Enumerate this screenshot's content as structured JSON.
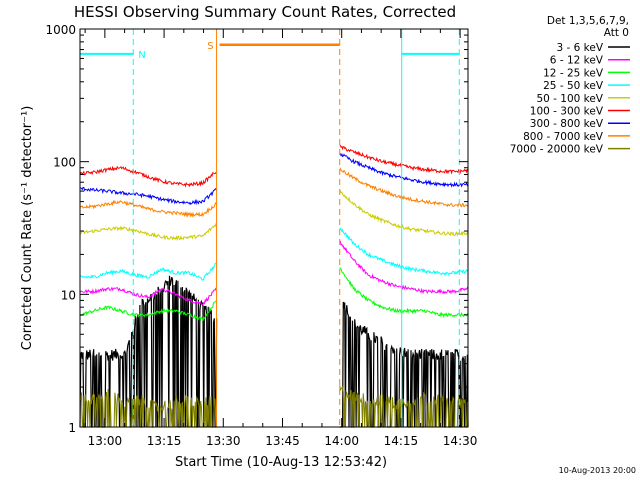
{
  "chart_data": {
    "type": "line",
    "title": "HESSI Observing Summary Count Rates, Corrected",
    "xlabel": "Start Time (10-Aug-13 12:53:42)",
    "ylabel": "Corrected Count Rate (s⁻¹ detector⁻¹)",
    "yscale": "log",
    "ylim": [
      1,
      1000
    ],
    "xlim_minutes": [
      53.7,
      152
    ],
    "x_ticks": [
      "13:00",
      "13:15",
      "13:30",
      "13:45",
      "14:00",
      "14:15",
      "14:30"
    ],
    "x_tick_minutes": [
      60,
      75,
      90,
      105,
      120,
      135,
      150
    ],
    "y_ticks": [
      "1",
      "10",
      "100",
      "1000"
    ],
    "grid": false,
    "legend_position": "right",
    "legend_header": [
      "Det 1,3,5,6,7,9,",
      "Att 0"
    ],
    "data_gap_minutes": [
      88.3,
      119.5
    ],
    "series": [
      {
        "name": "3 - 6 keV",
        "color": "#000000",
        "pre": [
          3.5,
          3.5,
          3.5,
          3.5,
          8.5,
          10.0,
          13.0,
          10.5,
          8.0,
          6.5
        ],
        "post": [
          10.0,
          6.0,
          5.0,
          4.3,
          3.8,
          3.5,
          3.5,
          3.5,
          3.5,
          3.5
        ]
      },
      {
        "name": "6 - 12 keV",
        "color": "#ff00ff",
        "pre": [
          10.5,
          10.5,
          11.0,
          11.0,
          10.0,
          9.5,
          11.0,
          10.0,
          9.0,
          8.5,
          11.0
        ],
        "post": [
          25.0,
          18.0,
          14.0,
          12.5,
          11.5,
          11.0,
          10.5,
          10.5,
          10.5,
          11.0
        ]
      },
      {
        "name": "12 - 25 keV",
        "color": "#00ff00",
        "pre": [
          7.0,
          7.5,
          8.0,
          7.5,
          7.0,
          7.0,
          7.5,
          7.5,
          7.0,
          6.5,
          9.0
        ],
        "post": [
          16.0,
          11.0,
          9.0,
          8.0,
          7.5,
          7.5,
          7.5,
          7.0,
          7.0,
          7.0
        ]
      },
      {
        "name": "25 - 50 keV",
        "color": "#00ffff",
        "pre": [
          13.5,
          13.5,
          14.5,
          15.0,
          14.0,
          13.5,
          15.5,
          14.5,
          14.5,
          13.0,
          17.0
        ],
        "post": [
          32.0,
          24.0,
          20.0,
          18.0,
          16.5,
          15.5,
          15.0,
          14.5,
          14.5,
          15.0
        ]
      },
      {
        "name": "50 - 100 keV",
        "color": "#cccc00",
        "pre": [
          29.0,
          30.0,
          31.0,
          31.5,
          30.5,
          28.5,
          27.0,
          26.5,
          27.0,
          27.5,
          34.0
        ],
        "post": [
          60.0,
          48.0,
          40.0,
          36.0,
          33.0,
          31.0,
          30.0,
          29.0,
          28.5,
          29.0
        ]
      },
      {
        "name": "100 - 300 keV",
        "color": "#ff0000",
        "pre": [
          81.0,
          83.0,
          87.0,
          90.0,
          84.0,
          77.0,
          71.0,
          68.0,
          67.0,
          69.0,
          85.0
        ],
        "post": [
          130.0,
          118.0,
          108.0,
          100.0,
          95.0,
          90.0,
          87.0,
          85.0,
          84.0,
          86.0
        ]
      },
      {
        "name": "300 - 800 keV",
        "color": "#0000ff",
        "pre": [
          63.0,
          61.0,
          60.0,
          58.0,
          57.0,
          55.0,
          52.0,
          50.0,
          49.0,
          50.0,
          62.0
        ],
        "post": [
          115.0,
          100.0,
          90.0,
          82.0,
          77.0,
          73.0,
          70.0,
          68.0,
          67.0,
          67.0
        ]
      },
      {
        "name": "800 - 7000 keV",
        "color": "#ff8000",
        "pre": [
          45.0,
          46.0,
          48.0,
          50.0,
          47.0,
          44.0,
          42.0,
          41.0,
          40.0,
          40.0,
          48.0
        ],
        "post": [
          88.0,
          75.0,
          66.0,
          60.0,
          55.0,
          52.0,
          50.0,
          48.0,
          47.0,
          47.0
        ]
      },
      {
        "name": "7000 - 20000 keV",
        "color": "#808000",
        "pre": [
          1.7,
          1.6,
          1.8,
          1.5,
          1.6,
          1.4,
          1.5,
          1.6,
          1.5,
          1.6
        ],
        "post": [
          1.9,
          1.7,
          1.6,
          1.6,
          1.5,
          1.6,
          1.7,
          1.6,
          1.5,
          1.6
        ]
      }
    ],
    "annotations": {
      "night_label": "N",
      "saa_label": "S",
      "night_intervals_minutes": [
        [
          53.7,
          67.2
        ],
        [
          135.2,
          149.8
        ]
      ],
      "saa_interval_minutes": [
        88.3,
        119.5
      ],
      "night_level": 650,
      "saa_level": 760,
      "night_color": "#00ffff",
      "saa_color": "#ff8000"
    },
    "stamp": "10-Aug-2013 20:00"
  }
}
